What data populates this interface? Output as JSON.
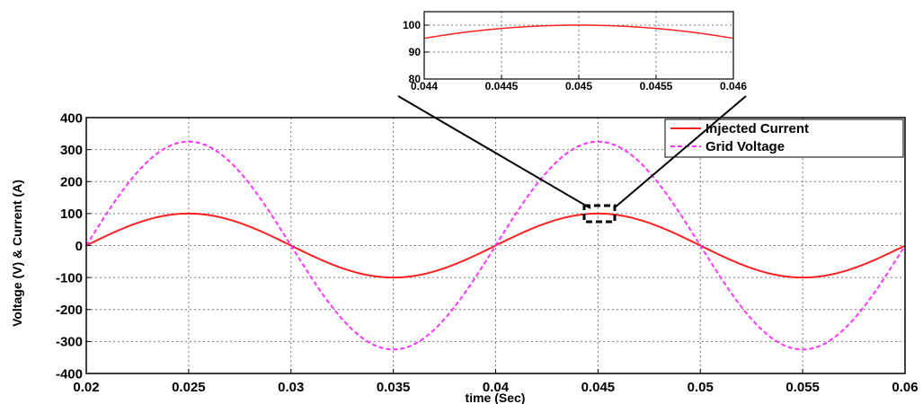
{
  "chart_data": [
    {
      "type": "line",
      "xlabel": "time (Sec)",
      "ylabel": "Voltage (V) & Current (A)",
      "xlim": [
        0.02,
        0.06
      ],
      "ylim": [
        -400,
        400
      ],
      "x_ticks": [
        "0.02",
        "0.025",
        "0.03",
        "0.035",
        "0.04",
        "0.045",
        "0.05",
        "0.055",
        "0.06"
      ],
      "y_ticks": [
        "400",
        "300",
        "200",
        "100",
        "0",
        "-100",
        "-200",
        "-300",
        "-400"
      ],
      "grid": true,
      "legend_position": "top-right",
      "series": [
        {
          "name": "Injected Current",
          "color": "#ff2020",
          "style": "solid",
          "x": [
            0.02,
            0.0225,
            0.025,
            0.0275,
            0.03,
            0.0325,
            0.035,
            0.0375,
            0.04,
            0.0425,
            0.045,
            0.0475,
            0.05,
            0.0525,
            0.055,
            0.0575,
            0.06
          ],
          "y": [
            0,
            70.7,
            100,
            70.7,
            0,
            -70.7,
            -100,
            -70.7,
            0,
            70.7,
            100,
            70.7,
            0,
            -70.7,
            -100,
            -70.7,
            0
          ]
        },
        {
          "name": "Grid Voltage",
          "color": "#ff33ff",
          "style": "dashed",
          "x": [
            0.02,
            0.0225,
            0.025,
            0.0275,
            0.03,
            0.0325,
            0.035,
            0.0375,
            0.04,
            0.0425,
            0.045,
            0.0475,
            0.05,
            0.0525,
            0.055,
            0.0575,
            0.06
          ],
          "y": [
            0,
            229.8,
            325,
            229.8,
            0,
            -229.8,
            -325,
            -229.8,
            0,
            229.8,
            325,
            229.8,
            0,
            -229.8,
            -325,
            -229.8,
            0
          ]
        }
      ]
    },
    {
      "type": "line",
      "xlim": [
        0.044,
        0.046
      ],
      "ylim": [
        80,
        105
      ],
      "x_ticks": [
        "0.044",
        "0.0445",
        "0.045",
        "0.0455",
        "0.046"
      ],
      "y_ticks": [
        "100",
        "90",
        "80"
      ],
      "grid": true,
      "series": [
        {
          "color": "#ff2020",
          "style": "solid",
          "x": [
            0.044,
            0.0445,
            0.045,
            0.0455,
            0.046
          ],
          "y": [
            95.1,
            98.8,
            100,
            98.8,
            95.1
          ]
        }
      ]
    }
  ]
}
